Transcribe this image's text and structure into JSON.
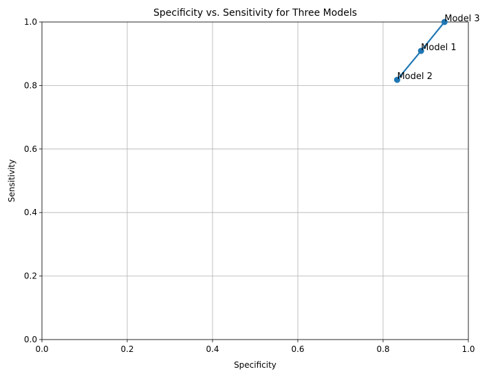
{
  "chart_data": {
    "type": "line",
    "title": "Specificity vs. Sensitivity for Three Models",
    "xlabel": "Specificity",
    "ylabel": "Sensitivity",
    "xlim": [
      0.0,
      1.0
    ],
    "ylim": [
      0.0,
      1.0
    ],
    "grid": true,
    "x_ticks": [
      0.0,
      0.2,
      0.4,
      0.6,
      0.8,
      1.0
    ],
    "x_tick_labels": [
      "0.0",
      "0.2",
      "0.4",
      "0.6",
      "0.8",
      "1.0"
    ],
    "y_ticks": [
      0.0,
      0.2,
      0.4,
      0.6,
      0.8,
      1.0
    ],
    "y_tick_labels": [
      "0.0",
      "0.2",
      "0.4",
      "0.6",
      "0.8",
      "1.0"
    ],
    "series": [
      {
        "color": "#1f77b4",
        "marker": "circle",
        "points": [
          {
            "label": "Model 2",
            "x": 0.833,
            "y": 0.818
          },
          {
            "label": "Model 1",
            "x": 0.889,
            "y": 0.909
          },
          {
            "label": "Model 3",
            "x": 0.944,
            "y": 1.0
          }
        ]
      }
    ]
  }
}
